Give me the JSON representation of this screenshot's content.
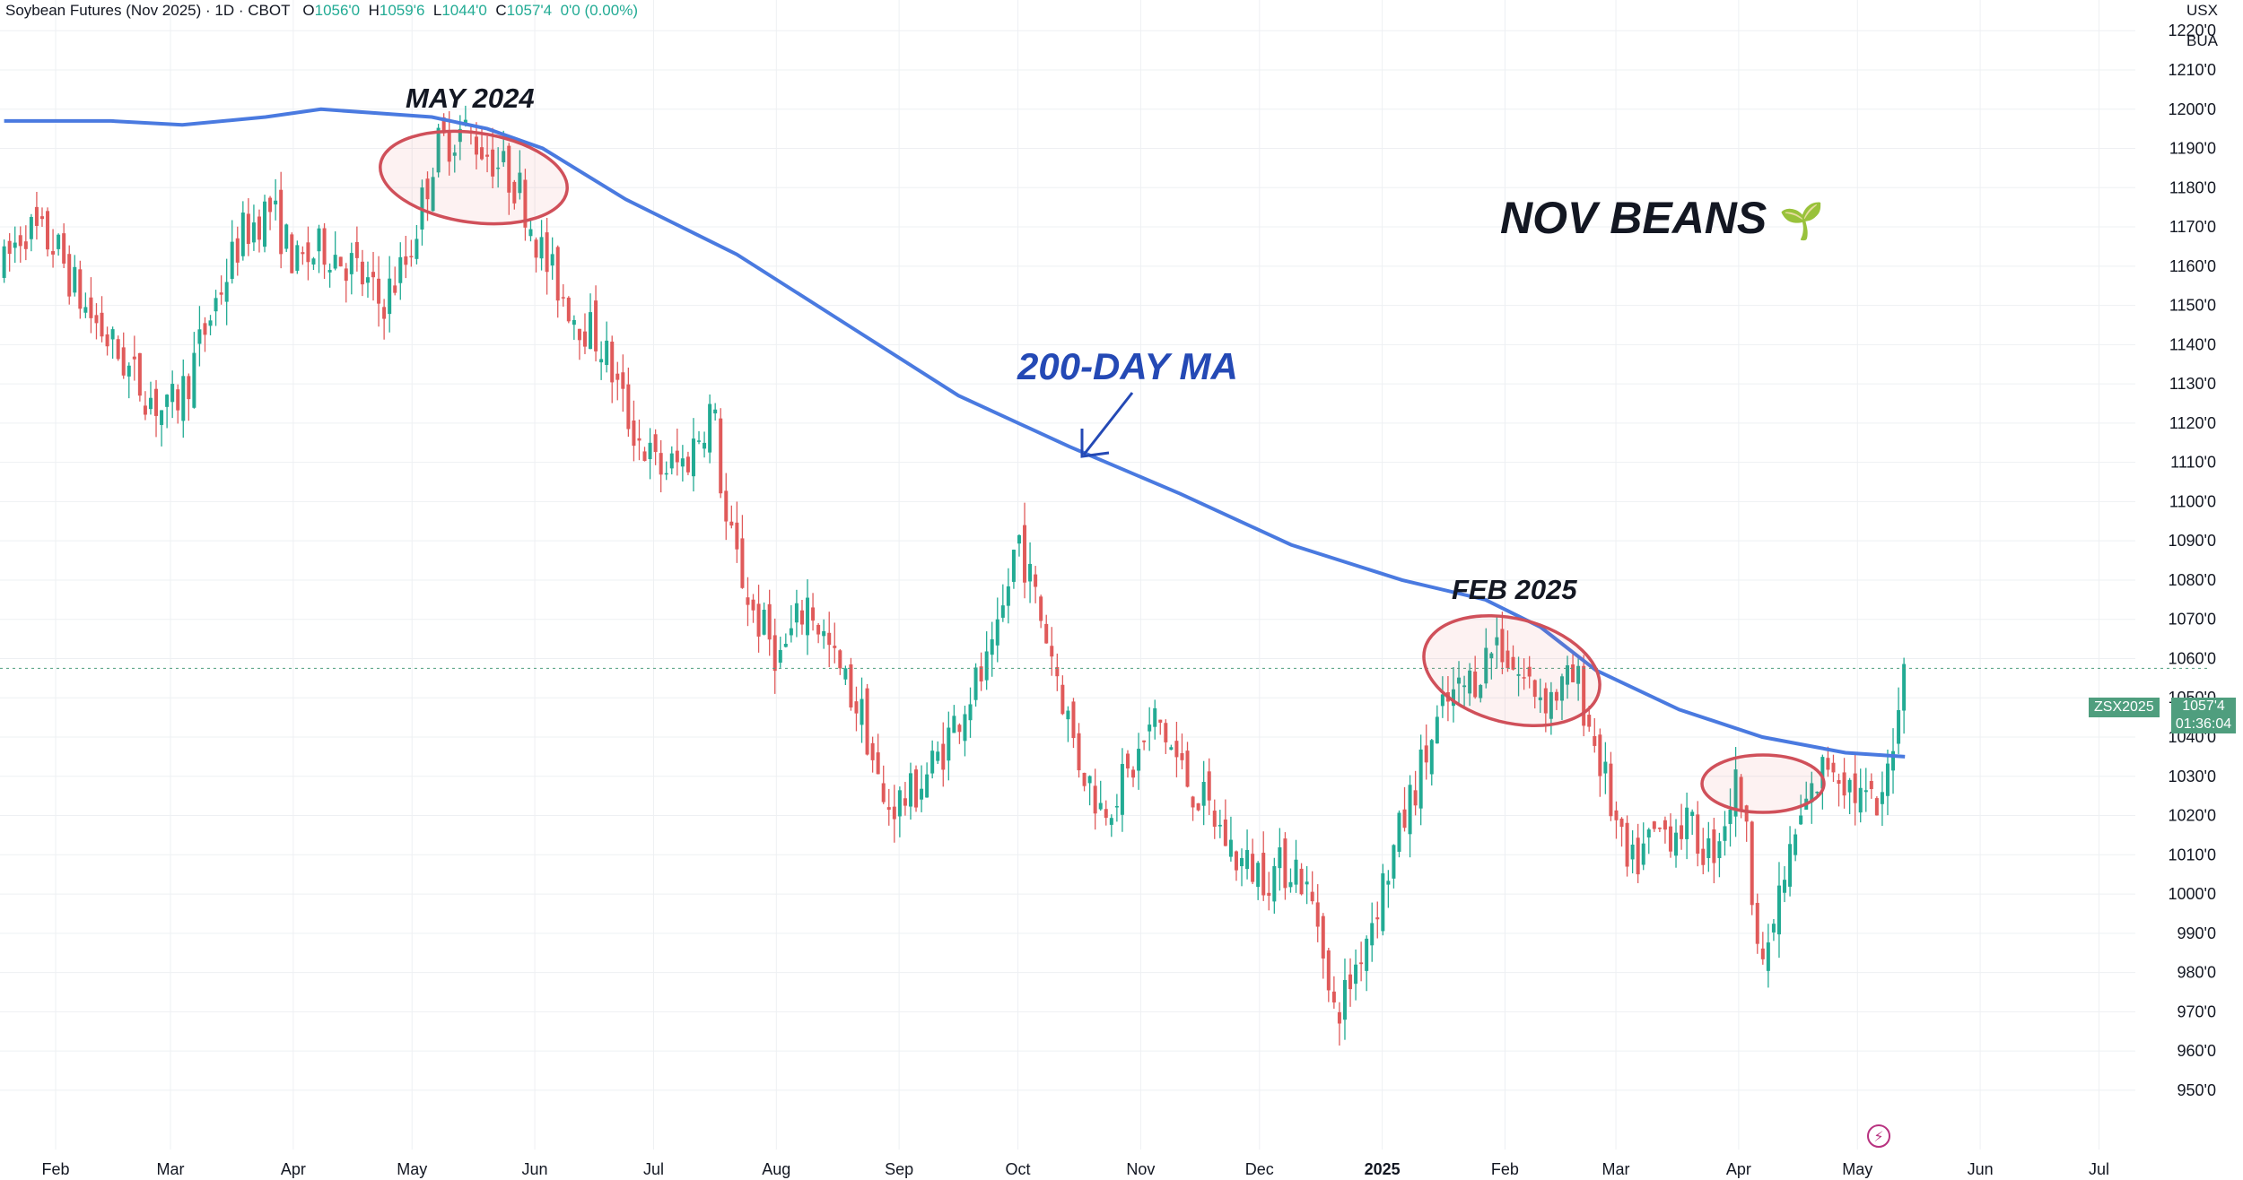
{
  "header": {
    "title": "Soybean Futures (Nov 2025)",
    "interval": "1D",
    "exchange": "CBOT",
    "open_label": "O",
    "open": "1056'0",
    "high_label": "H",
    "high": "1059'6",
    "low_label": "L",
    "low": "1044'0",
    "close_label": "C",
    "close": "1057'4",
    "change": "0'0 (0.00%)"
  },
  "corner": {
    "currency": "USX",
    "unit": "BUA"
  },
  "annotations": {
    "may2024": "MAY 2024",
    "feb2025": "FEB 2025",
    "ma_label": "200-DAY MA",
    "nov_beans": "NOV BEANS",
    "sprout": "🌱"
  },
  "price_tag": {
    "symbol": "ZSX2025",
    "last": "1057'4",
    "countdown": "01:36:04"
  },
  "colors": {
    "up": "#22ab94",
    "down": "#e05a5a",
    "ma": "#4a7ae0",
    "circle": "#d0505a",
    "arrow": "#2449b5",
    "grid": "#eef0f3"
  },
  "icons": [
    "lightning-icon",
    "sprout-icon"
  ],
  "chart_data": {
    "type": "candlestick",
    "ylim": [
      945,
      1226
    ],
    "y_ticks": [
      "1220'0",
      "1210'0",
      "1200'0",
      "1190'0",
      "1180'0",
      "1170'0",
      "1160'0",
      "1150'0",
      "1140'0",
      "1130'0",
      "1120'0",
      "1110'0",
      "1100'0",
      "1090'0",
      "1080'0",
      "1070'0",
      "1060'0",
      "1050'0",
      "1040'0",
      "1030'0",
      "1020'0",
      "1010'0",
      "1000'0",
      "990'0",
      "980'0",
      "970'0",
      "960'0",
      "950'0"
    ],
    "x_ticks": [
      {
        "label": "Feb",
        "date": "2024-02-01"
      },
      {
        "label": "Mar",
        "date": "2024-03-01"
      },
      {
        "label": "Apr",
        "date": "2024-04-01"
      },
      {
        "label": "May",
        "date": "2024-05-01"
      },
      {
        "label": "Jun",
        "date": "2024-06-01"
      },
      {
        "label": "Jul",
        "date": "2024-07-01"
      },
      {
        "label": "Aug",
        "date": "2024-08-01"
      },
      {
        "label": "Sep",
        "date": "2024-09-01"
      },
      {
        "label": "Oct",
        "date": "2024-10-01"
      },
      {
        "label": "Nov",
        "date": "2024-11-01"
      },
      {
        "label": "Dec",
        "date": "2024-12-01"
      },
      {
        "label": "2025",
        "date": "2025-01-01",
        "bold": true
      },
      {
        "label": "Feb",
        "date": "2025-02-01"
      },
      {
        "label": "Mar",
        "date": "2025-03-01"
      },
      {
        "label": "Apr",
        "date": "2025-04-01"
      },
      {
        "label": "May",
        "date": "2025-05-01"
      },
      {
        "label": "Jun",
        "date": "2025-06-01"
      },
      {
        "label": "Jul",
        "date": "2025-07-01"
      }
    ],
    "close_path": [
      [
        "2024-01-19",
        1160
      ],
      [
        "2024-01-24",
        1170
      ],
      [
        "2024-02-01",
        1165
      ],
      [
        "2024-02-08",
        1150
      ],
      [
        "2024-02-15",
        1140
      ],
      [
        "2024-02-22",
        1130
      ],
      [
        "2024-02-29",
        1122
      ],
      [
        "2024-03-05",
        1130
      ],
      [
        "2024-03-12",
        1150
      ],
      [
        "2024-03-19",
        1168
      ],
      [
        "2024-03-26",
        1175
      ],
      [
        "2024-04-02",
        1160
      ],
      [
        "2024-04-09",
        1165
      ],
      [
        "2024-04-16",
        1160
      ],
      [
        "2024-04-23",
        1150
      ],
      [
        "2024-04-30",
        1162
      ],
      [
        "2024-05-07",
        1190
      ],
      [
        "2024-05-14",
        1195
      ],
      [
        "2024-05-21",
        1188
      ],
      [
        "2024-05-28",
        1180
      ],
      [
        "2024-06-04",
        1160
      ],
      [
        "2024-06-11",
        1148
      ],
      [
        "2024-06-18",
        1140
      ],
      [
        "2024-06-25",
        1120
      ],
      [
        "2024-07-02",
        1108
      ],
      [
        "2024-07-09",
        1110
      ],
      [
        "2024-07-16",
        1125
      ],
      [
        "2024-07-19",
        1095
      ],
      [
        "2024-07-26",
        1072
      ],
      [
        "2024-08-02",
        1060
      ],
      [
        "2024-08-09",
        1075
      ],
      [
        "2024-08-16",
        1058
      ],
      [
        "2024-08-23",
        1045
      ],
      [
        "2024-08-28",
        1022
      ],
      [
        "2024-09-04",
        1025
      ],
      [
        "2024-09-11",
        1035
      ],
      [
        "2024-09-18",
        1050
      ],
      [
        "2024-09-25",
        1060
      ],
      [
        "2024-10-01",
        1092
      ],
      [
        "2024-10-04",
        1080
      ],
      [
        "2024-10-10",
        1060
      ],
      [
        "2024-10-16",
        1035
      ],
      [
        "2024-10-22",
        1022
      ],
      [
        "2024-10-29",
        1030
      ],
      [
        "2024-11-05",
        1045
      ],
      [
        "2024-11-12",
        1030
      ],
      [
        "2024-11-19",
        1020
      ],
      [
        "2024-11-26",
        1008
      ],
      [
        "2024-12-03",
        1005
      ],
      [
        "2024-12-10",
        1008
      ],
      [
        "2024-12-17",
        990
      ],
      [
        "2024-12-19",
        968
      ],
      [
        "2024-12-23",
        975
      ],
      [
        "2025-01-02",
        1005
      ],
      [
        "2025-01-10",
        1030
      ],
      [
        "2025-01-17",
        1048
      ],
      [
        "2025-01-24",
        1055
      ],
      [
        "2025-01-30",
        1065
      ],
      [
        "2025-02-05",
        1055
      ],
      [
        "2025-02-12",
        1050
      ],
      [
        "2025-02-19",
        1055
      ],
      [
        "2025-02-26",
        1030
      ],
      [
        "2025-03-04",
        1005
      ],
      [
        "2025-03-11",
        1015
      ],
      [
        "2025-03-18",
        1018
      ],
      [
        "2025-03-25",
        1010
      ],
      [
        "2025-04-01",
        1030
      ],
      [
        "2025-04-04",
        1005
      ],
      [
        "2025-04-08",
        978
      ],
      [
        "2025-04-10",
        995
      ],
      [
        "2025-04-17",
        1020
      ],
      [
        "2025-04-24",
        1035
      ],
      [
        "2025-05-01",
        1025
      ],
      [
        "2025-05-07",
        1020
      ],
      [
        "2025-05-12",
        1055
      ],
      [
        "2025-05-13",
        1057.5
      ]
    ],
    "series": [
      {
        "name": "200-DAY MA",
        "type": "line",
        "points": [
          [
            "2024-01-19",
            1197
          ],
          [
            "2024-02-15",
            1197
          ],
          [
            "2024-03-04",
            1196
          ],
          [
            "2024-03-25",
            1198
          ],
          [
            "2024-04-08",
            1200
          ],
          [
            "2024-05-06",
            1198
          ],
          [
            "2024-05-20",
            1195
          ],
          [
            "2024-06-03",
            1190
          ],
          [
            "2024-06-24",
            1177
          ],
          [
            "2024-07-22",
            1163
          ],
          [
            "2024-08-19",
            1145
          ],
          [
            "2024-09-16",
            1127
          ],
          [
            "2024-10-14",
            1114
          ],
          [
            "2024-11-11",
            1102
          ],
          [
            "2024-12-09",
            1089
          ],
          [
            "2025-01-06",
            1080
          ],
          [
            "2025-01-27",
            1075
          ],
          [
            "2025-02-10",
            1068
          ],
          [
            "2025-02-24",
            1057
          ],
          [
            "2025-03-17",
            1047
          ],
          [
            "2025-04-07",
            1040
          ],
          [
            "2025-04-28",
            1036
          ],
          [
            "2025-05-13",
            1035
          ]
        ]
      }
    ],
    "last_price": 1057.5,
    "annotations": [
      "MAY 2024",
      "FEB 2025",
      "200-DAY MA",
      "NOV BEANS"
    ]
  }
}
